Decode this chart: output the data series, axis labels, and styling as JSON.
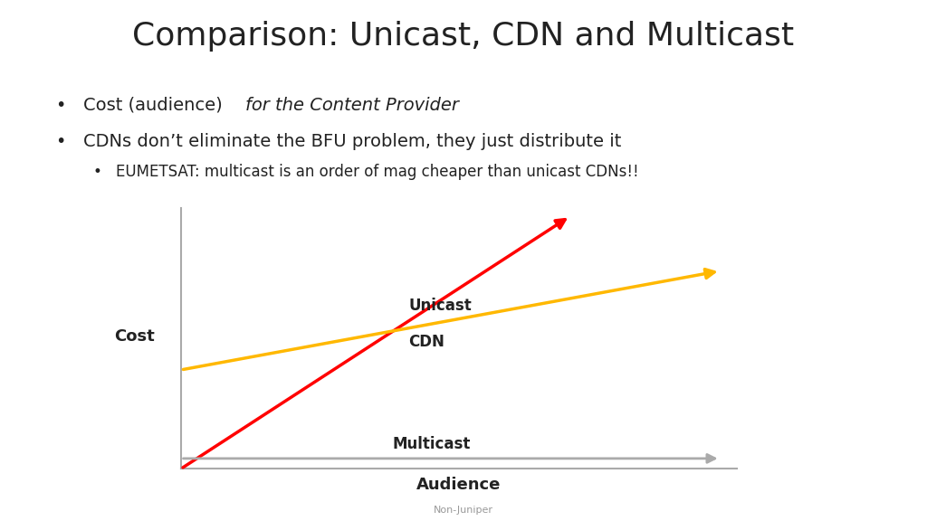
{
  "title": "Comparison: Unicast, CDN and Multicast",
  "bullet1_normal": "Cost (audience) ",
  "bullet1_italic": "for the Content Provider",
  "bullet2": "CDNs don’t eliminate the BFU problem, they just distribute it",
  "bullet3": "EUMETSAT: multicast is an order of mag cheaper than unicast CDNs!!",
  "xlabel": "Audience",
  "ylabel": "Cost",
  "footer": "Non-Juniper",
  "unicast_label": "Unicast",
  "cdn_label": "CDN",
  "multicast_label": "Multicast",
  "unicast_color": "#FF0000",
  "cdn_color": "#FFB800",
  "multicast_color": "#AAAAAA",
  "bg_color": "#FFFFFF",
  "title_fontsize": 26,
  "bullet_fontsize": 14,
  "subbullet_fontsize": 12,
  "line_label_fontsize": 12,
  "axis_label_fontsize": 13,
  "footer_fontsize": 8
}
